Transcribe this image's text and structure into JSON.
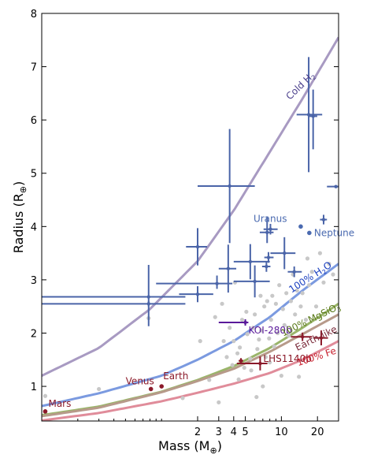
{
  "chart_data": {
    "type": "scatter",
    "title": "",
    "xlabel": "Mass (M",
    "xlabel_sub": "⊕",
    "xlabel_close": ")",
    "ylabel": "Radius (R",
    "ylabel_sub": "⊕",
    "ylabel_close": ")",
    "x_scale": "log",
    "xlim": [
      0.1,
      30
    ],
    "ylim": [
      0.35,
      8
    ],
    "x_ticks": [
      {
        "v": 2,
        "label": "2"
      },
      {
        "v": 3,
        "label": "3"
      },
      {
        "v": 4,
        "label": "4"
      },
      {
        "v": 5,
        "label": "5"
      },
      {
        "v": 10,
        "label": "10"
      },
      {
        "v": 20,
        "label": "20"
      }
    ],
    "y_ticks": [
      {
        "v": 1,
        "label": "1"
      },
      {
        "v": 2,
        "label": "2"
      },
      {
        "v": 3,
        "label": "3"
      },
      {
        "v": 4,
        "label": "4"
      },
      {
        "v": 5,
        "label": "5"
      },
      {
        "v": 6,
        "label": "6"
      },
      {
        "v": 7,
        "label": "7"
      },
      {
        "v": 8,
        "label": "8"
      }
    ],
    "grid": false,
    "curves": [
      {
        "label": "Cold H",
        "label_sub": "2",
        "color": "#a89ac2",
        "label_color": "#4a3f8c",
        "rotate": -44,
        "points": [
          [
            0.1,
            1.2
          ],
          [
            0.3,
            1.72
          ],
          [
            0.8,
            2.45
          ],
          [
            2,
            3.35
          ],
          [
            4,
            4.3
          ],
          [
            8,
            5.4
          ],
          [
            15,
            6.4
          ],
          [
            30,
            7.55
          ]
        ],
        "label_at": [
          15,
          6.6
        ]
      },
      {
        "label": "100% H",
        "label_sub": "2",
        "label_tail": "O",
        "color": "#7b9ae0",
        "label_color": "#1a3fc0",
        "rotate": -33,
        "points": [
          [
            0.1,
            0.63
          ],
          [
            0.3,
            0.87
          ],
          [
            1,
            1.2
          ],
          [
            2,
            1.5
          ],
          [
            4,
            1.85
          ],
          [
            8,
            2.3
          ],
          [
            15,
            2.8
          ],
          [
            30,
            3.3
          ]
        ],
        "label_at": [
          18,
          3.0
        ]
      },
      {
        "label": "100% MgSiO",
        "label_sub": "3",
        "color": "#9ab56a",
        "label_color": "#5a7a1a",
        "rotate": -26,
        "points": [
          [
            0.1,
            0.46
          ],
          [
            0.3,
            0.62
          ],
          [
            1,
            0.9
          ],
          [
            2,
            1.12
          ],
          [
            4,
            1.38
          ],
          [
            8,
            1.72
          ],
          [
            15,
            2.1
          ],
          [
            30,
            2.55
          ]
        ],
        "label_at": [
          18,
          2.2
        ]
      },
      {
        "label": "Earth-like",
        "color": "#b79a8a",
        "label_color": "#7a2a3a",
        "rotate": -26,
        "points": [
          [
            0.1,
            0.44
          ],
          [
            0.3,
            0.6
          ],
          [
            1,
            0.89
          ],
          [
            2,
            1.1
          ],
          [
            4,
            1.33
          ],
          [
            8,
            1.65
          ],
          [
            15,
            1.98
          ],
          [
            30,
            2.35
          ]
        ],
        "label_at": [
          20,
          1.85
        ]
      },
      {
        "label": "100% Fe",
        "color": "#e08c9a",
        "label_color": "#c8202e",
        "rotate": -18,
        "points": [
          [
            0.1,
            0.36
          ],
          [
            0.3,
            0.5
          ],
          [
            1,
            0.72
          ],
          [
            2,
            0.88
          ],
          [
            4,
            1.05
          ],
          [
            8,
            1.25
          ],
          [
            15,
            1.5
          ],
          [
            30,
            1.85
          ]
        ],
        "label_at": [
          20,
          1.5
        ]
      }
    ],
    "planets": [
      {
        "name": "Mars",
        "x": 0.107,
        "y": 0.53,
        "color": "#8b1a2a",
        "label_dx": 4,
        "label_dy": -6
      },
      {
        "name": "Venus",
        "x": 0.815,
        "y": 0.95,
        "color": "#8b1a2a",
        "label_dx": -32,
        "label_dy": -6
      },
      {
        "name": "Earth",
        "x": 1.0,
        "y": 1.0,
        "color": "#8b1a2a",
        "label_dx": 2,
        "label_dy": -9
      },
      {
        "name": "Uranus",
        "x": 14.5,
        "y": 4.0,
        "color": "#4a6ab0",
        "label_dx": -60,
        "label_dy": -6
      },
      {
        "name": "Neptune",
        "x": 17.1,
        "y": 3.88,
        "color": "#4a6ab0",
        "label_dx": 6,
        "label_dy": 4
      }
    ],
    "highlighted": [
      {
        "name": "KOI-280b",
        "x": 5.0,
        "y": 2.2,
        "xerr": [
          2.0,
          0.3
        ],
        "yerr": [
          0.06,
          0.06
        ],
        "color": "#5a1a9a",
        "label_dx": 4,
        "label_dy": 14
      },
      {
        "name": "LHS1140b",
        "x": 6.65,
        "y": 1.43,
        "xerr": [
          2.4,
          1.0
        ],
        "yerr": [
          0.13,
          0.13
        ],
        "color": "#8b1a2a",
        "label_dx": 4,
        "label_dy": -2
      },
      {
        "name": "",
        "x": 15.0,
        "y": 1.93,
        "xerr": [
          3.0,
          3.0
        ],
        "yerr": [
          0.08,
          0.08
        ],
        "color": "#8b1a2a"
      },
      {
        "name": "",
        "x": 21.5,
        "y": 1.91,
        "xerr": [
          3.0,
          3.0
        ],
        "yerr": [
          0.14,
          0.14
        ],
        "color": "#8b1a2a"
      },
      {
        "name": "",
        "x": 4.6,
        "y": 1.48,
        "xerr": [
          0.2,
          0.2
        ],
        "yerr": [
          0.05,
          0.05
        ],
        "color": "#8b1a2a"
      }
    ],
    "measured": [
      {
        "x": 0.78,
        "y": 2.68,
        "xerr": [
          0.68,
          0.8
        ],
        "yerr": [
          0.55,
          0.6
        ]
      },
      {
        "x": 0.78,
        "y": 2.55,
        "xerr": [
          0.68,
          0.8
        ],
        "yerr": [
          0.05,
          0.05
        ]
      },
      {
        "x": 2.0,
        "y": 3.62,
        "xerr": [
          0.4,
          0.4
        ],
        "yerr": [
          0.35,
          0.35
        ]
      },
      {
        "x": 2.0,
        "y": 2.73,
        "xerr": [
          0.6,
          0.7
        ],
        "yerr": [
          0.15,
          0.15
        ]
      },
      {
        "x": 2.9,
        "y": 2.93,
        "xerr": [
          2.0,
          1.0
        ],
        "yerr": [
          0.1,
          0.15
        ]
      },
      {
        "x": 3.7,
        "y": 4.76,
        "xerr": [
          1.7,
          2.3
        ],
        "yerr": [
          1.07,
          1.07
        ]
      },
      {
        "x": 3.6,
        "y": 3.21,
        "xerr": [
          0.6,
          0.6
        ],
        "yerr": [
          0.45,
          0.45
        ]
      },
      {
        "x": 5.5,
        "y": 3.34,
        "xerr": [
          1.5,
          2.5
        ],
        "yerr": [
          0.33,
          0.33
        ]
      },
      {
        "x": 6.0,
        "y": 2.97,
        "xerr": [
          2.0,
          2.0
        ],
        "yerr": [
          0.3,
          0.3
        ]
      },
      {
        "x": 7.6,
        "y": 3.89,
        "xerr": [
          1.0,
          1.0
        ],
        "yerr": [
          0.2,
          0.3
        ]
      },
      {
        "x": 8.1,
        "y": 3.95,
        "xerr": [
          1.0,
          1.2
        ],
        "yerr": [
          0.1,
          0.1
        ]
      },
      {
        "x": 7.8,
        "y": 3.42,
        "xerr": [
          0.6,
          0.8
        ],
        "yerr": [
          0.1,
          0.1
        ]
      },
      {
        "x": 7.5,
        "y": 3.25,
        "xerr": [
          0.6,
          0.6
        ],
        "yerr": [
          0.1,
          0.1
        ]
      },
      {
        "x": 10.6,
        "y": 3.5,
        "xerr": [
          2.5,
          2.5
        ],
        "yerr": [
          0.3,
          0.3
        ]
      },
      {
        "x": 12.8,
        "y": 3.15,
        "xerr": [
          1.5,
          2.0
        ],
        "yerr": [
          0.1,
          0.1
        ]
      },
      {
        "x": 16.9,
        "y": 6.1,
        "xerr": [
          3.5,
          5.0
        ],
        "yerr": [
          1.08,
          1.08
        ]
      },
      {
        "x": 18.4,
        "y": 6.07,
        "xerr": [
          1.5,
          1.5
        ],
        "yerr": [
          0.62,
          0.5
        ]
      },
      {
        "x": 22.5,
        "y": 4.13,
        "xerr": [
          1.5,
          1.5
        ],
        "yerr": [
          0.09,
          0.09
        ]
      },
      {
        "x": 28.5,
        "y": 4.75,
        "xerr": [
          4.5,
          1.5
        ],
        "yerr": [
          0.0,
          0.0
        ]
      }
    ],
    "background": [
      [
        0.107,
        0.82
      ],
      [
        0.3,
        0.95
      ],
      [
        0.78,
        2.28
      ],
      [
        1.5,
        0.78
      ],
      [
        2.1,
        1.85
      ],
      [
        2.5,
        1.12
      ],
      [
        3.0,
        0.7
      ],
      [
        2.8,
        2.3
      ],
      [
        3.3,
        1.85
      ],
      [
        3.5,
        1.55
      ],
      [
        3.7,
        2.1
      ],
      [
        3.9,
        1.4
      ],
      [
        4.0,
        1.85
      ],
      [
        4.1,
        2.95
      ],
      [
        4.3,
        1.62
      ],
      [
        4.5,
        1.73
      ],
      [
        4.7,
        2.25
      ],
      [
        4.9,
        1.35
      ],
      [
        5.1,
        2.4
      ],
      [
        5.2,
        1.98
      ],
      [
        5.5,
        1.52
      ],
      [
        5.8,
        2.1
      ],
      [
        6.0,
        2.35
      ],
      [
        6.3,
        1.7
      ],
      [
        6.5,
        1.88
      ],
      [
        6.8,
        2.05
      ],
      [
        7.0,
        1.0
      ],
      [
        7.2,
        2.5
      ],
      [
        7.4,
        1.55
      ],
      [
        7.6,
        2.6
      ],
      [
        7.9,
        1.9
      ],
      [
        8.2,
        2.25
      ],
      [
        8.4,
        2.7
      ],
      [
        8.7,
        1.75
      ],
      [
        9.0,
        2.55
      ],
      [
        9.3,
        2.0
      ],
      [
        9.6,
        2.9
      ],
      [
        10.0,
        1.2
      ],
      [
        10.3,
        2.45
      ],
      [
        10.6,
        2.15
      ],
      [
        11.0,
        2.75
      ],
      [
        11.5,
        1.95
      ],
      [
        12.0,
        2.6
      ],
      [
        12.5,
        3.1
      ],
      [
        13.0,
        2.35
      ],
      [
        13.5,
        2.8
      ],
      [
        14.0,
        1.18
      ],
      [
        14.5,
        2.5
      ],
      [
        15.0,
        2.75
      ],
      [
        16.0,
        2.25
      ],
      [
        16.5,
        3.4
      ],
      [
        17.0,
        2.9
      ],
      [
        18.0,
        3.15
      ],
      [
        19.5,
        2.5
      ],
      [
        21.0,
        3.5
      ],
      [
        22.5,
        2.95
      ],
      [
        25.0,
        3.3
      ],
      [
        27.0,
        3.1
      ],
      [
        5.6,
        1.3
      ],
      [
        6.2,
        0.8
      ],
      [
        3.2,
        2.55
      ],
      [
        4.4,
        1.13
      ],
      [
        8.0,
        1.45
      ],
      [
        6.7,
        2.7
      ]
    ]
  }
}
